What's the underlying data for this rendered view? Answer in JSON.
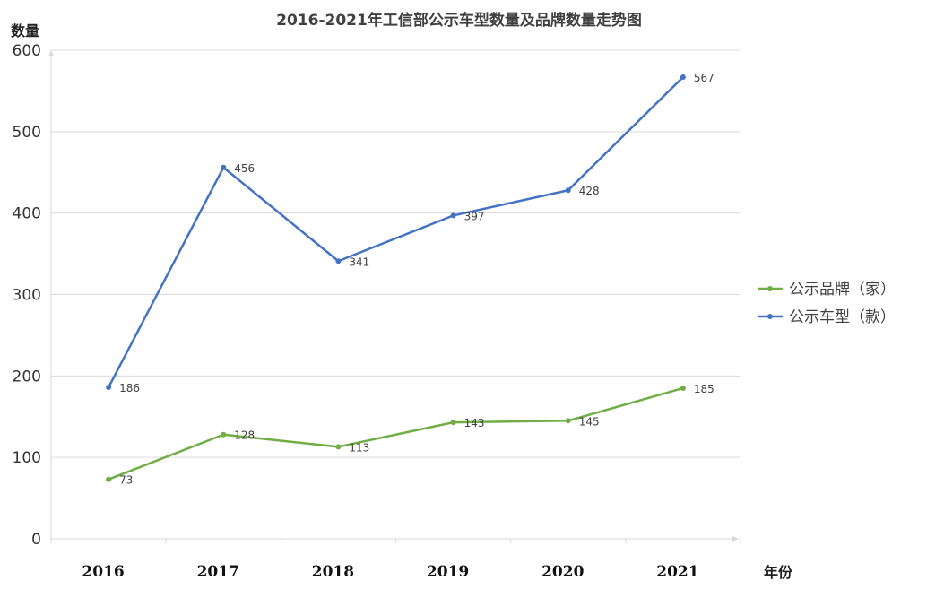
{
  "chart_data": {
    "type": "line",
    "title": "2016-2021年工信部公示车型数量及品牌数量走势图",
    "ylabel": "数量",
    "xlabel": "年份",
    "x": [
      "2016",
      "2017",
      "2018",
      "2019",
      "2020",
      "2021"
    ],
    "ylim": [
      0,
      600
    ],
    "yticks": [
      "0",
      "100",
      "200",
      "300",
      "400",
      "500",
      "600"
    ],
    "grid": true,
    "legend_position": "right",
    "series": [
      {
        "name": "公示车型（款）",
        "color": "#4472c4",
        "values": [
          186,
          456,
          341,
          397,
          428,
          567
        ]
      },
      {
        "name": "公示品牌（家）",
        "color": "#70ad47",
        "values": [
          73,
          128,
          113,
          143,
          145,
          185
        ]
      }
    ],
    "legend_order": [
      1,
      0
    ]
  }
}
